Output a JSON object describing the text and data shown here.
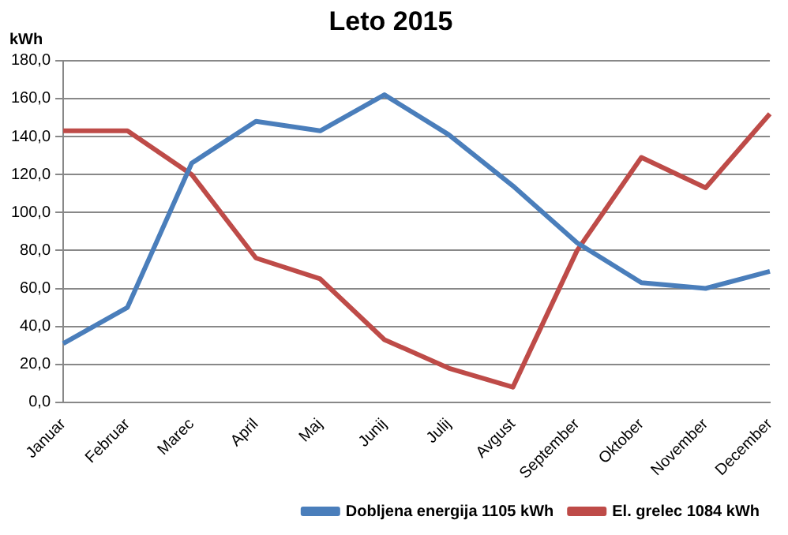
{
  "chart_data": {
    "type": "line",
    "title": "Leto 2015",
    "ylabel": "kWh",
    "categories": [
      "Januar",
      "Februar",
      "Marec",
      "April",
      "Maj",
      "Junij",
      "Julij",
      "Avgust",
      "September",
      "Oktober",
      "November",
      "December"
    ],
    "series": [
      {
        "name": "Dobljena energija 1105 kWh",
        "color": "#4a7ebb",
        "values": [
          31,
          50,
          126,
          148,
          143,
          162,
          141,
          114,
          84,
          63,
          60,
          69
        ]
      },
      {
        "name": "El. grelec 1084 kWh",
        "color": "#be4b48",
        "values": [
          143,
          143,
          120,
          76,
          65,
          33,
          18,
          8,
          80,
          129,
          113,
          152
        ]
      }
    ],
    "ylim": [
      0,
      180
    ],
    "yticks": [
      {
        "value": 0,
        "label": "0,0"
      },
      {
        "value": 20,
        "label": "20,0"
      },
      {
        "value": 40,
        "label": "40,0"
      },
      {
        "value": 60,
        "label": "60,0"
      },
      {
        "value": 80,
        "label": "80,0"
      },
      {
        "value": 100,
        "label": "100,0"
      },
      {
        "value": 120,
        "label": "120,0"
      },
      {
        "value": 140,
        "label": "140,0"
      },
      {
        "value": 160,
        "label": "160,0"
      },
      {
        "value": 180,
        "label": "180,0"
      }
    ],
    "grid": "y",
    "legend": "bottom right",
    "marker": "none",
    "line_style": "solid"
  }
}
